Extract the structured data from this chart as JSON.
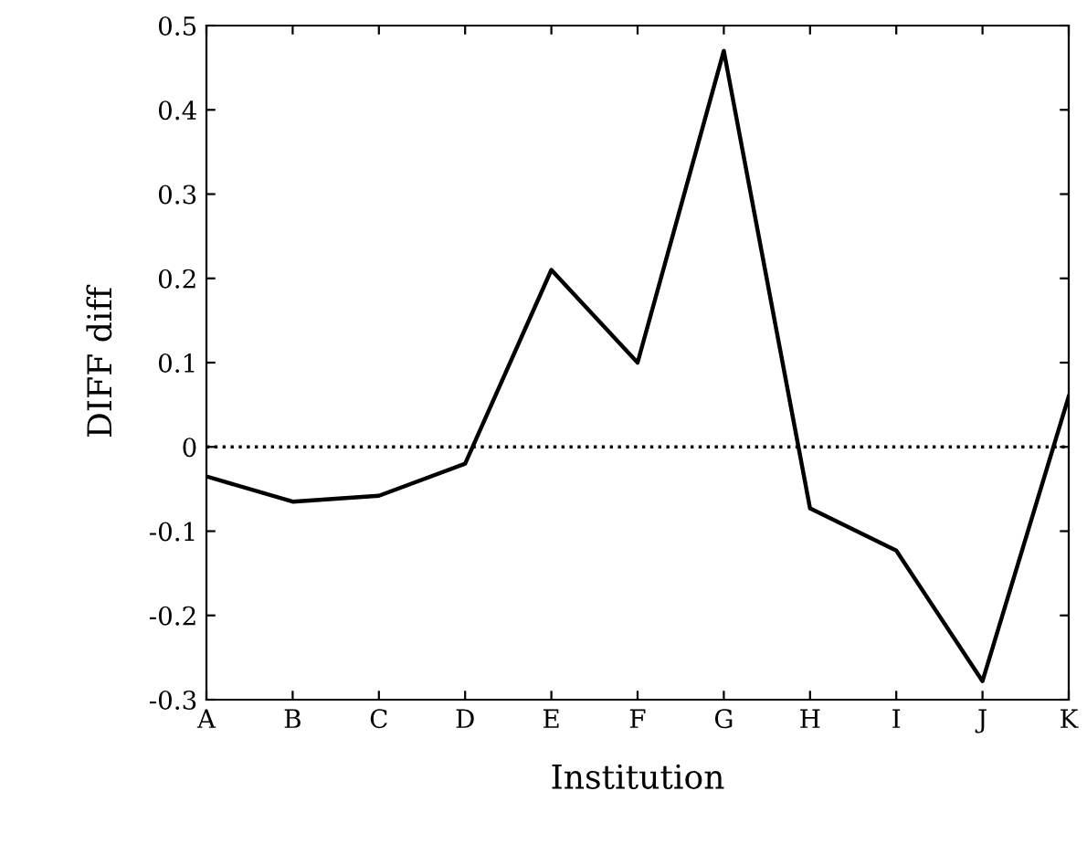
{
  "chart_data": {
    "type": "line",
    "xlabel": "Institution",
    "ylabel": "DIFF diff",
    "categories": [
      "A",
      "B",
      "C",
      "D",
      "E",
      "F",
      "G",
      "H",
      "I",
      "J",
      "K"
    ],
    "series": [
      {
        "color": "#000000",
        "values": [
          -0.035,
          -0.065,
          -0.058,
          -0.02,
          0.21,
          0.1,
          0.47,
          -0.073,
          -0.123,
          -0.278,
          0.06
        ]
      }
    ],
    "ylim": [
      -0.3,
      0.5
    ],
    "yticks": [
      -0.3,
      -0.2,
      -0.1,
      0,
      0.1,
      0.2,
      0.3,
      0.4,
      0.5
    ],
    "ref_lines": [
      {
        "axis": "y",
        "value": 0,
        "color": "#000000",
        "line_style": "dotted"
      }
    ],
    "grid": false,
    "marker": "none",
    "line_style": "solid"
  }
}
